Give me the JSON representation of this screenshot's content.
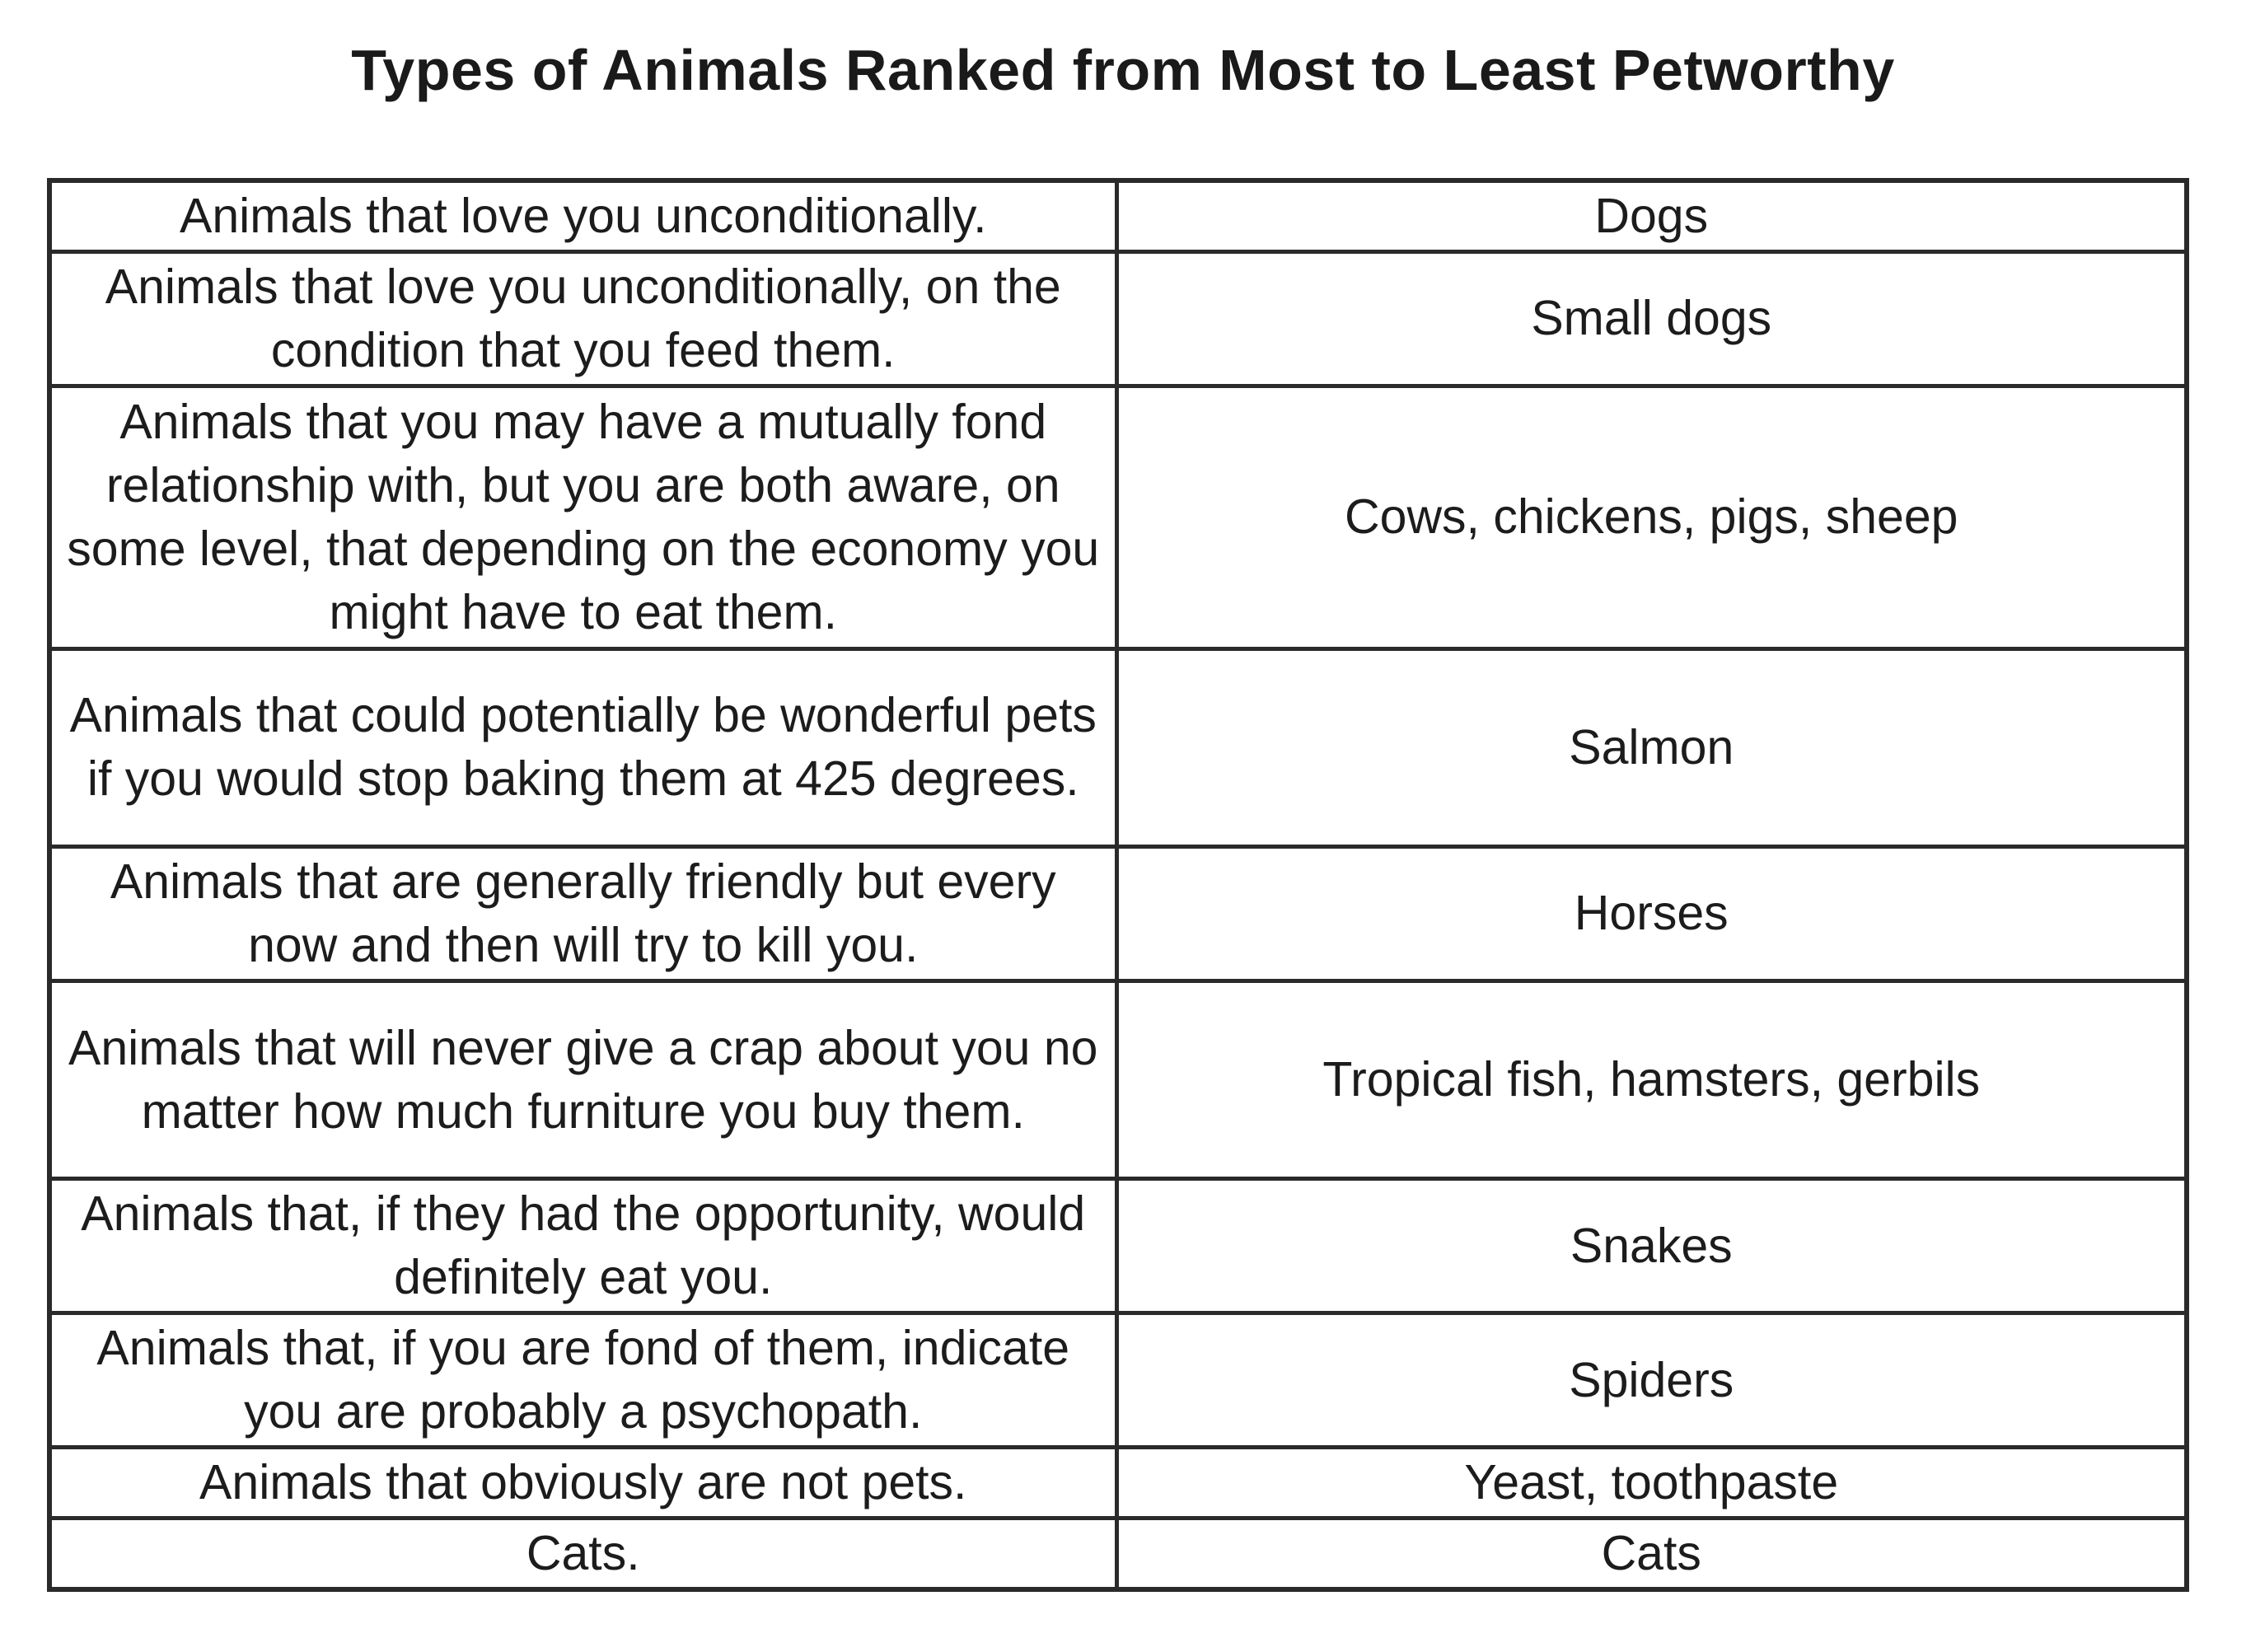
{
  "title": "Types of Animals Ranked from Most to Least Petworthy",
  "rows": [
    {
      "description": "Animals that love you unconditionally.",
      "animals": "Dogs"
    },
    {
      "description": "Animals that love you unconditionally, on the condition that you feed them.",
      "animals": "Small dogs"
    },
    {
      "description": "Animals that you may have a mutually fond relationship with, but you are both aware, on some level, that depending on the economy you might have to eat them.",
      "animals": "Cows, chickens, pigs, sheep"
    },
    {
      "description": "Animals that could potentially be wonderful pets if you would stop baking them at 425 degrees.",
      "animals": "Salmon"
    },
    {
      "description": "Animals that are generally friendly but every now and then will try to kill you.",
      "animals": "Horses"
    },
    {
      "description": "Animals that will never give a crap about you no matter how much furniture you buy them.",
      "animals": "Tropical fish, hamsters, gerbils"
    },
    {
      "description": "Animals that, if they had the opportunity, would definitely eat you.",
      "animals": "Snakes"
    },
    {
      "description": "Animals that, if you are fond of them, indicate you are probably a psychopath.",
      "animals": "Spiders"
    },
    {
      "description": "Animals that obviously are not pets.",
      "animals": "Yeast, toothpaste"
    },
    {
      "description": "Cats.",
      "animals": "Cats"
    }
  ]
}
